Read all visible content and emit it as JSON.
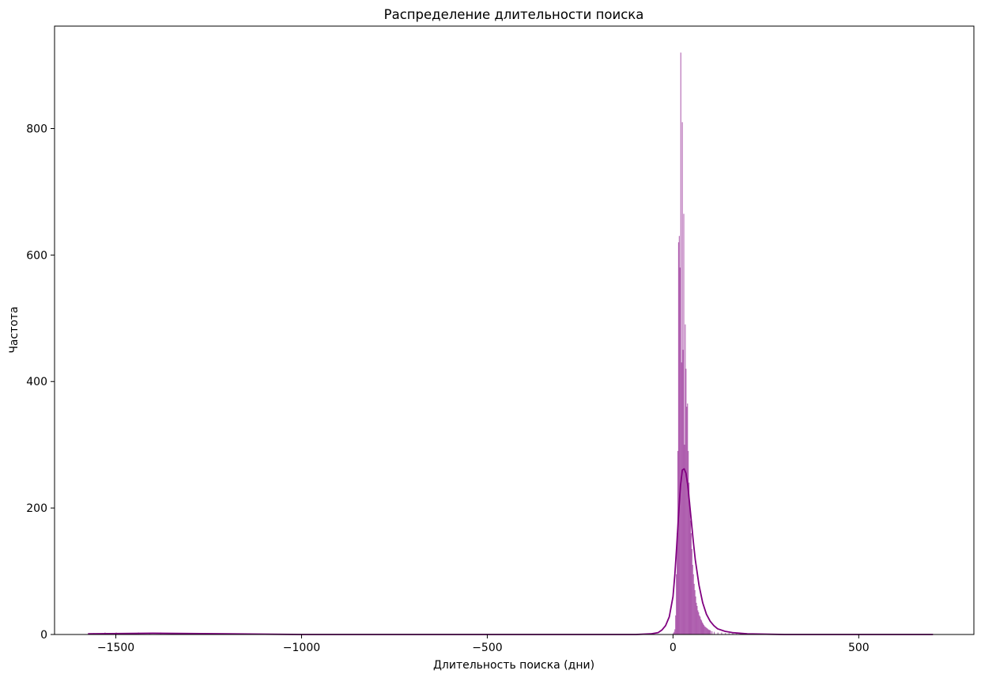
{
  "chart_data": {
    "type": "bar",
    "title": "Распределение длительности поиска",
    "xlabel": "Длительность поиска (дни)",
    "ylabel": "Частота",
    "xlim": [
      -1665,
      810
    ],
    "ylim": [
      0,
      962
    ],
    "x_ticks": [
      {
        "value": -1500,
        "label": "−1500"
      },
      {
        "value": -1000,
        "label": "−1000"
      },
      {
        "value": -500,
        "label": "−500"
      },
      {
        "value": 0,
        "label": "0"
      },
      {
        "value": 500,
        "label": "500"
      }
    ],
    "y_ticks": [
      {
        "value": 0,
        "label": "0"
      },
      {
        "value": 200,
        "label": "200"
      },
      {
        "value": 400,
        "label": "400"
      },
      {
        "value": 600,
        "label": "600"
      },
      {
        "value": 800,
        "label": "800"
      }
    ],
    "grid": false,
    "legend": "none",
    "bar_color": "#800080",
    "bar_opacity": 0.55,
    "kde_color": "#800080",
    "histogram": {
      "bin_width": 2,
      "bins": [
        {
          "x": 0,
          "y": 2
        },
        {
          "x": 2,
          "y": 4
        },
        {
          "x": 4,
          "y": 8
        },
        {
          "x": 6,
          "y": 30
        },
        {
          "x": 8,
          "y": 95
        },
        {
          "x": 10,
          "y": 160
        },
        {
          "x": 12,
          "y": 290
        },
        {
          "x": 14,
          "y": 620
        },
        {
          "x": 16,
          "y": 630
        },
        {
          "x": 18,
          "y": 580
        },
        {
          "x": 20,
          "y": 920
        },
        {
          "x": 22,
          "y": 430
        },
        {
          "x": 24,
          "y": 810
        },
        {
          "x": 26,
          "y": 450
        },
        {
          "x": 28,
          "y": 665
        },
        {
          "x": 30,
          "y": 300
        },
        {
          "x": 32,
          "y": 490
        },
        {
          "x": 34,
          "y": 420
        },
        {
          "x": 36,
          "y": 360
        },
        {
          "x": 38,
          "y": 365
        },
        {
          "x": 40,
          "y": 290
        },
        {
          "x": 42,
          "y": 240
        },
        {
          "x": 44,
          "y": 210
        },
        {
          "x": 46,
          "y": 180
        },
        {
          "x": 48,
          "y": 160
        },
        {
          "x": 50,
          "y": 135
        },
        {
          "x": 52,
          "y": 110
        },
        {
          "x": 54,
          "y": 95
        },
        {
          "x": 56,
          "y": 80
        },
        {
          "x": 58,
          "y": 70
        },
        {
          "x": 60,
          "y": 60
        },
        {
          "x": 62,
          "y": 50
        },
        {
          "x": 64,
          "y": 45
        },
        {
          "x": 66,
          "y": 38
        },
        {
          "x": 68,
          "y": 35
        },
        {
          "x": 70,
          "y": 30
        },
        {
          "x": 72,
          "y": 28
        },
        {
          "x": 74,
          "y": 24
        },
        {
          "x": 76,
          "y": 22
        },
        {
          "x": 78,
          "y": 19
        },
        {
          "x": 80,
          "y": 17
        },
        {
          "x": 82,
          "y": 15
        },
        {
          "x": 84,
          "y": 13
        },
        {
          "x": 86,
          "y": 12
        },
        {
          "x": 88,
          "y": 11
        },
        {
          "x": 90,
          "y": 10
        },
        {
          "x": 92,
          "y": 9
        },
        {
          "x": 94,
          "y": 8
        },
        {
          "x": 96,
          "y": 7
        },
        {
          "x": 98,
          "y": 7
        },
        {
          "x": 100,
          "y": 6
        },
        {
          "x": 104,
          "y": 5
        },
        {
          "x": 110,
          "y": 4
        },
        {
          "x": 120,
          "y": 3
        },
        {
          "x": 130,
          "y": 3
        },
        {
          "x": 140,
          "y": 2
        },
        {
          "x": 150,
          "y": 2
        },
        {
          "x": 160,
          "y": 2
        },
        {
          "x": 170,
          "y": 1
        },
        {
          "x": 180,
          "y": 1
        },
        {
          "x": 200,
          "y": 1
        },
        {
          "x": -1560,
          "y": 2
        },
        {
          "x": -1530,
          "y": 3
        },
        {
          "x": -1500,
          "y": 3
        },
        {
          "x": -1470,
          "y": 2
        },
        {
          "x": -1440,
          "y": 3
        },
        {
          "x": -1410,
          "y": 2
        },
        {
          "x": -1380,
          "y": 3
        },
        {
          "x": -1350,
          "y": 2
        },
        {
          "x": -1300,
          "y": 2
        }
      ]
    },
    "kde": {
      "x": [
        -1575,
        -1400,
        -1200,
        -1000,
        -800,
        -600,
        -400,
        -200,
        -100,
        -60,
        -40,
        -30,
        -20,
        -10,
        0,
        5,
        10,
        15,
        20,
        25,
        30,
        35,
        40,
        45,
        50,
        55,
        60,
        70,
        80,
        90,
        100,
        110,
        120,
        140,
        160,
        200,
        300,
        500,
        700
      ],
      "y": [
        1,
        2,
        1,
        0,
        0,
        0,
        0,
        0,
        0,
        1,
        3,
        7,
        14,
        28,
        60,
        95,
        140,
        190,
        235,
        260,
        262,
        255,
        235,
        205,
        175,
        145,
        118,
        78,
        50,
        32,
        21,
        14,
        9,
        5,
        3,
        1,
        0,
        0,
        0
      ]
    }
  }
}
